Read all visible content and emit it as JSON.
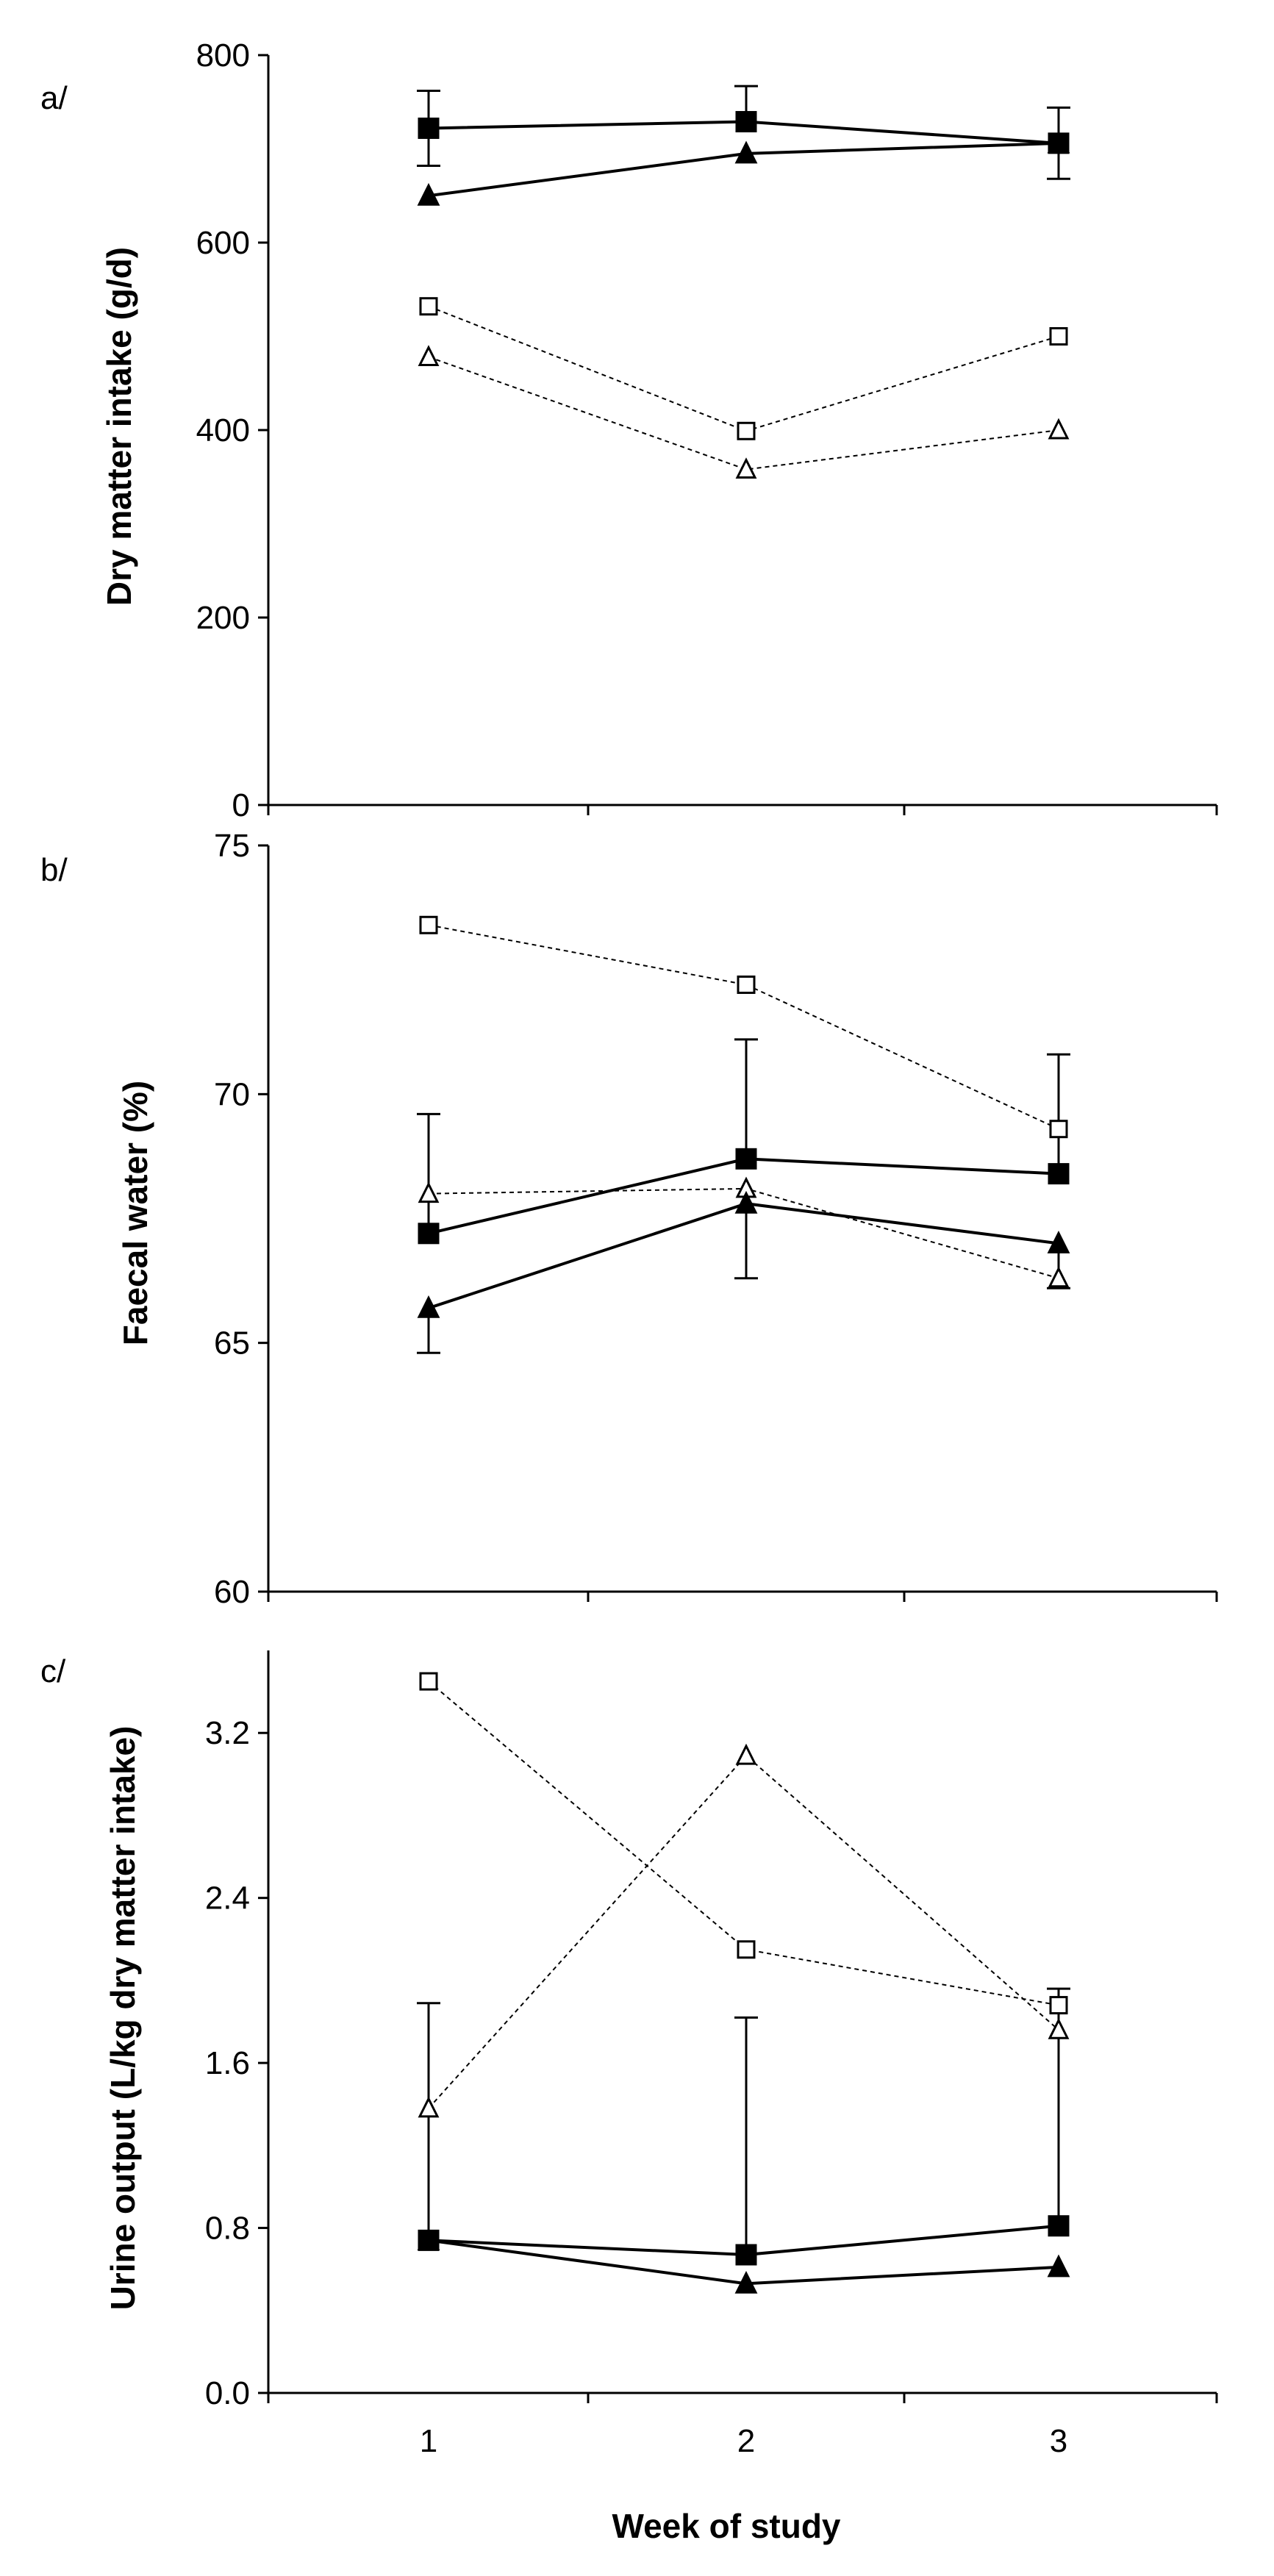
{
  "chart_data": [
    {
      "type": "line",
      "panel_label": "a/",
      "title": "",
      "xlabel": "",
      "ylabel": "Dry matter intake (g/d)",
      "categories": [
        "1",
        "2",
        "3"
      ],
      "ylim": [
        0,
        800
      ],
      "yticks": [
        "0",
        "200",
        "400",
        "600",
        "800"
      ],
      "series": [
        {
          "name": "filled-square",
          "marker": "square",
          "filled": true,
          "dashed": false,
          "values": [
            722,
            729,
            706
          ],
          "error_up": [
            40,
            38,
            38
          ],
          "error_down": [
            40,
            0,
            38
          ]
        },
        {
          "name": "filled-triangle",
          "marker": "triangle",
          "filled": true,
          "dashed": false,
          "values": [
            650,
            695,
            706
          ],
          "error_up": [
            0,
            0,
            0
          ],
          "error_down": [
            0,
            0,
            0
          ]
        },
        {
          "name": "open-square",
          "marker": "square",
          "filled": false,
          "dashed": true,
          "values": [
            532,
            399,
            500
          ],
          "error_up": [
            0,
            0,
            0
          ],
          "error_down": [
            0,
            0,
            0
          ]
        },
        {
          "name": "open-triangle",
          "marker": "triangle",
          "filled": false,
          "dashed": true,
          "values": [
            478,
            358,
            400
          ],
          "error_up": [
            0,
            0,
            0
          ],
          "error_down": [
            0,
            0,
            0
          ]
        }
      ]
    },
    {
      "type": "line",
      "panel_label": "b/",
      "title": "",
      "xlabel": "",
      "ylabel": "Faecal water (%)",
      "categories": [
        "1",
        "2",
        "3"
      ],
      "ylim": [
        60,
        75
      ],
      "yticks": [
        "60",
        "65",
        "70",
        "75"
      ],
      "series": [
        {
          "name": "filled-square",
          "marker": "square",
          "filled": true,
          "dashed": false,
          "values": [
            67.2,
            68.7,
            68.4
          ],
          "error_up": [
            2.4,
            2.4,
            2.4
          ],
          "error_down": [
            0,
            0,
            0
          ]
        },
        {
          "name": "filled-triangle",
          "marker": "triangle",
          "filled": true,
          "dashed": false,
          "values": [
            65.7,
            67.8,
            67.0
          ],
          "error_up": [
            0,
            0,
            0
          ],
          "error_down": [
            0.9,
            1.5,
            0.9
          ]
        },
        {
          "name": "open-square",
          "marker": "square",
          "filled": false,
          "dashed": true,
          "values": [
            73.4,
            72.2,
            69.3
          ],
          "error_up": [
            0,
            0,
            0
          ],
          "error_down": [
            0,
            0,
            0
          ]
        },
        {
          "name": "open-triangle",
          "marker": "triangle",
          "filled": false,
          "dashed": true,
          "values": [
            68.0,
            68.1,
            66.3
          ],
          "error_up": [
            0,
            0,
            0
          ],
          "error_down": [
            0,
            0,
            0
          ]
        }
      ]
    },
    {
      "type": "line",
      "panel_label": "c/",
      "title": "",
      "xlabel": "Week of study",
      "ylabel": "Urine output (L/kg dry matter intake)",
      "categories": [
        "1",
        "2",
        "3"
      ],
      "ylim": [
        0,
        3.6
      ],
      "yticks": [
        "0.0",
        "0.8",
        "1.6",
        "2.4",
        "3.2"
      ],
      "series": [
        {
          "name": "filled-square",
          "marker": "square",
          "filled": true,
          "dashed": false,
          "values": [
            0.74,
            0.67,
            0.81
          ],
          "error_up": [
            1.15,
            1.15,
            1.15
          ],
          "error_down": [
            0,
            0,
            0
          ]
        },
        {
          "name": "filled-triangle",
          "marker": "triangle",
          "filled": true,
          "dashed": false,
          "values": [
            0.74,
            0.53,
            0.61
          ],
          "error_up": [
            0,
            0,
            0
          ],
          "error_down": [
            0,
            0,
            0
          ]
        },
        {
          "name": "open-square",
          "marker": "square",
          "filled": false,
          "dashed": true,
          "values": [
            3.45,
            2.15,
            1.88
          ],
          "error_up": [
            0,
            0,
            0
          ],
          "error_down": [
            0,
            0,
            0
          ]
        },
        {
          "name": "open-triangle",
          "marker": "triangle",
          "filled": false,
          "dashed": true,
          "values": [
            1.38,
            3.09,
            1.76
          ],
          "error_up": [
            0,
            0,
            0
          ],
          "error_down": [
            0,
            0,
            0
          ]
        }
      ]
    }
  ]
}
